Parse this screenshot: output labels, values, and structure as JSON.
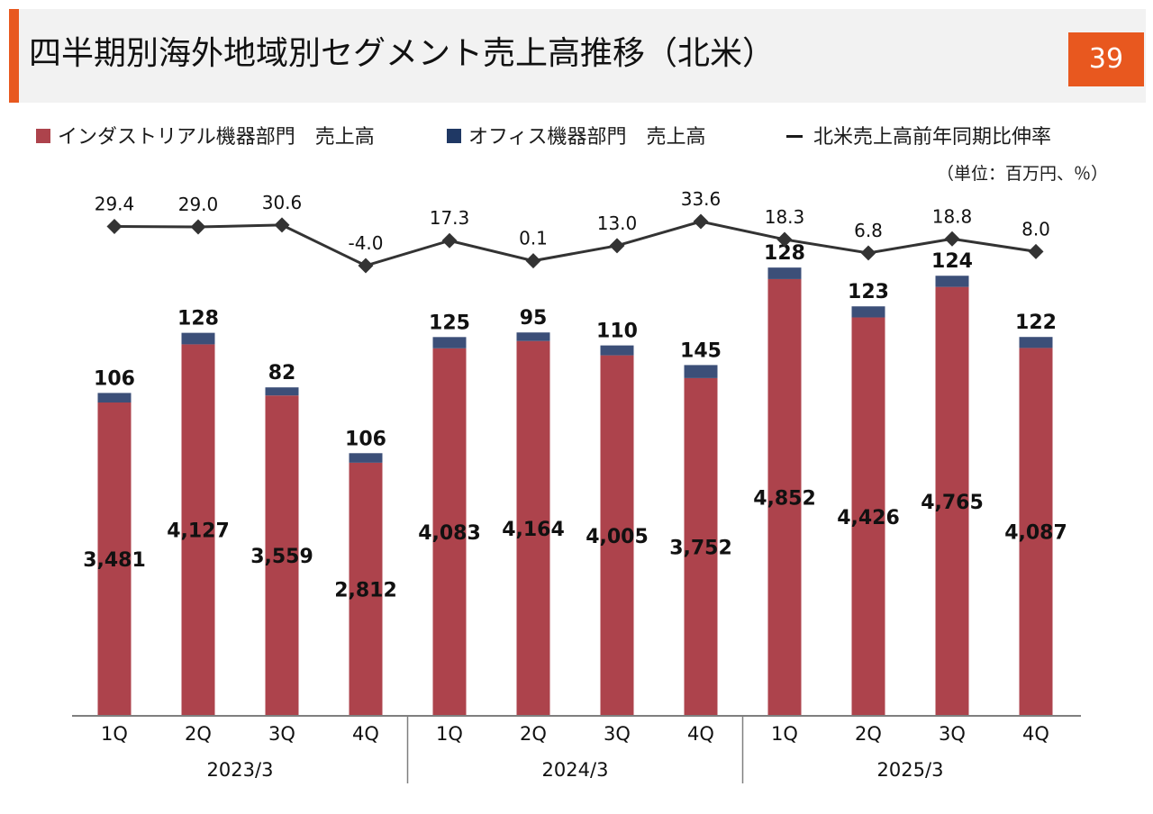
{
  "header": {
    "title": "四半期別海外地域別セグメント売上高推移（北米）",
    "page_number": "39"
  },
  "legend": {
    "industrial": "インダストリアル機器部門　売上高",
    "office": "オフィス機器部門　売上高",
    "growth": "北米売上高前年同期比伸率"
  },
  "unit_note": "（単位：百万円、％）",
  "colors": {
    "accent": "#e8581f",
    "industrial": "#ad434c",
    "office": "#3c4f78",
    "office_legend": "#1f3864",
    "line": "#333333",
    "axis": "#7f7f7f"
  },
  "chart_data": {
    "type": "bar",
    "stacked": true,
    "categories": [
      "1Q",
      "2Q",
      "3Q",
      "4Q",
      "1Q",
      "2Q",
      "3Q",
      "4Q",
      "1Q",
      "2Q",
      "3Q",
      "4Q"
    ],
    "groups": [
      {
        "label": "2023/3",
        "count": 4
      },
      {
        "label": "2024/3",
        "count": 4
      },
      {
        "label": "2025/3",
        "count": 4
      }
    ],
    "series": [
      {
        "name": "インダストリアル機器部門　売上高",
        "values": [
          3481,
          4127,
          3559,
          2812,
          4083,
          4164,
          4005,
          3752,
          4852,
          4426,
          4765,
          4087
        ]
      },
      {
        "name": "オフィス機器部門　売上高",
        "values": [
          106,
          128,
          82,
          106,
          125,
          95,
          110,
          145,
          128,
          123,
          124,
          122
        ]
      }
    ],
    "line_series": {
      "name": "北米売上高前年同期比伸率",
      "values": [
        29.4,
        29.0,
        30.6,
        -4.0,
        17.3,
        0.1,
        13.0,
        33.6,
        18.3,
        6.8,
        18.8,
        8.0
      ],
      "labels": [
        "29.4",
        "29.0",
        "30.6",
        "-4.0",
        "17.3",
        "0.1",
        "13.0",
        "33.6",
        "18.3",
        "6.8",
        "18.8",
        "8.0"
      ]
    },
    "industrial_labels": [
      "3,481",
      "4,127",
      "3,559",
      "2,812",
      "4,083",
      "4,164",
      "4,005",
      "3,752",
      "4,852",
      "4,426",
      "4,765",
      "4,087"
    ],
    "office_labels": [
      "106",
      "128",
      "82",
      "106",
      "125",
      "95",
      "110",
      "145",
      "128",
      "123",
      "124",
      "122"
    ],
    "ylim": [
      0,
      6800
    ],
    "y2lim": [
      -4.0,
      33.6
    ],
    "grid": false
  }
}
